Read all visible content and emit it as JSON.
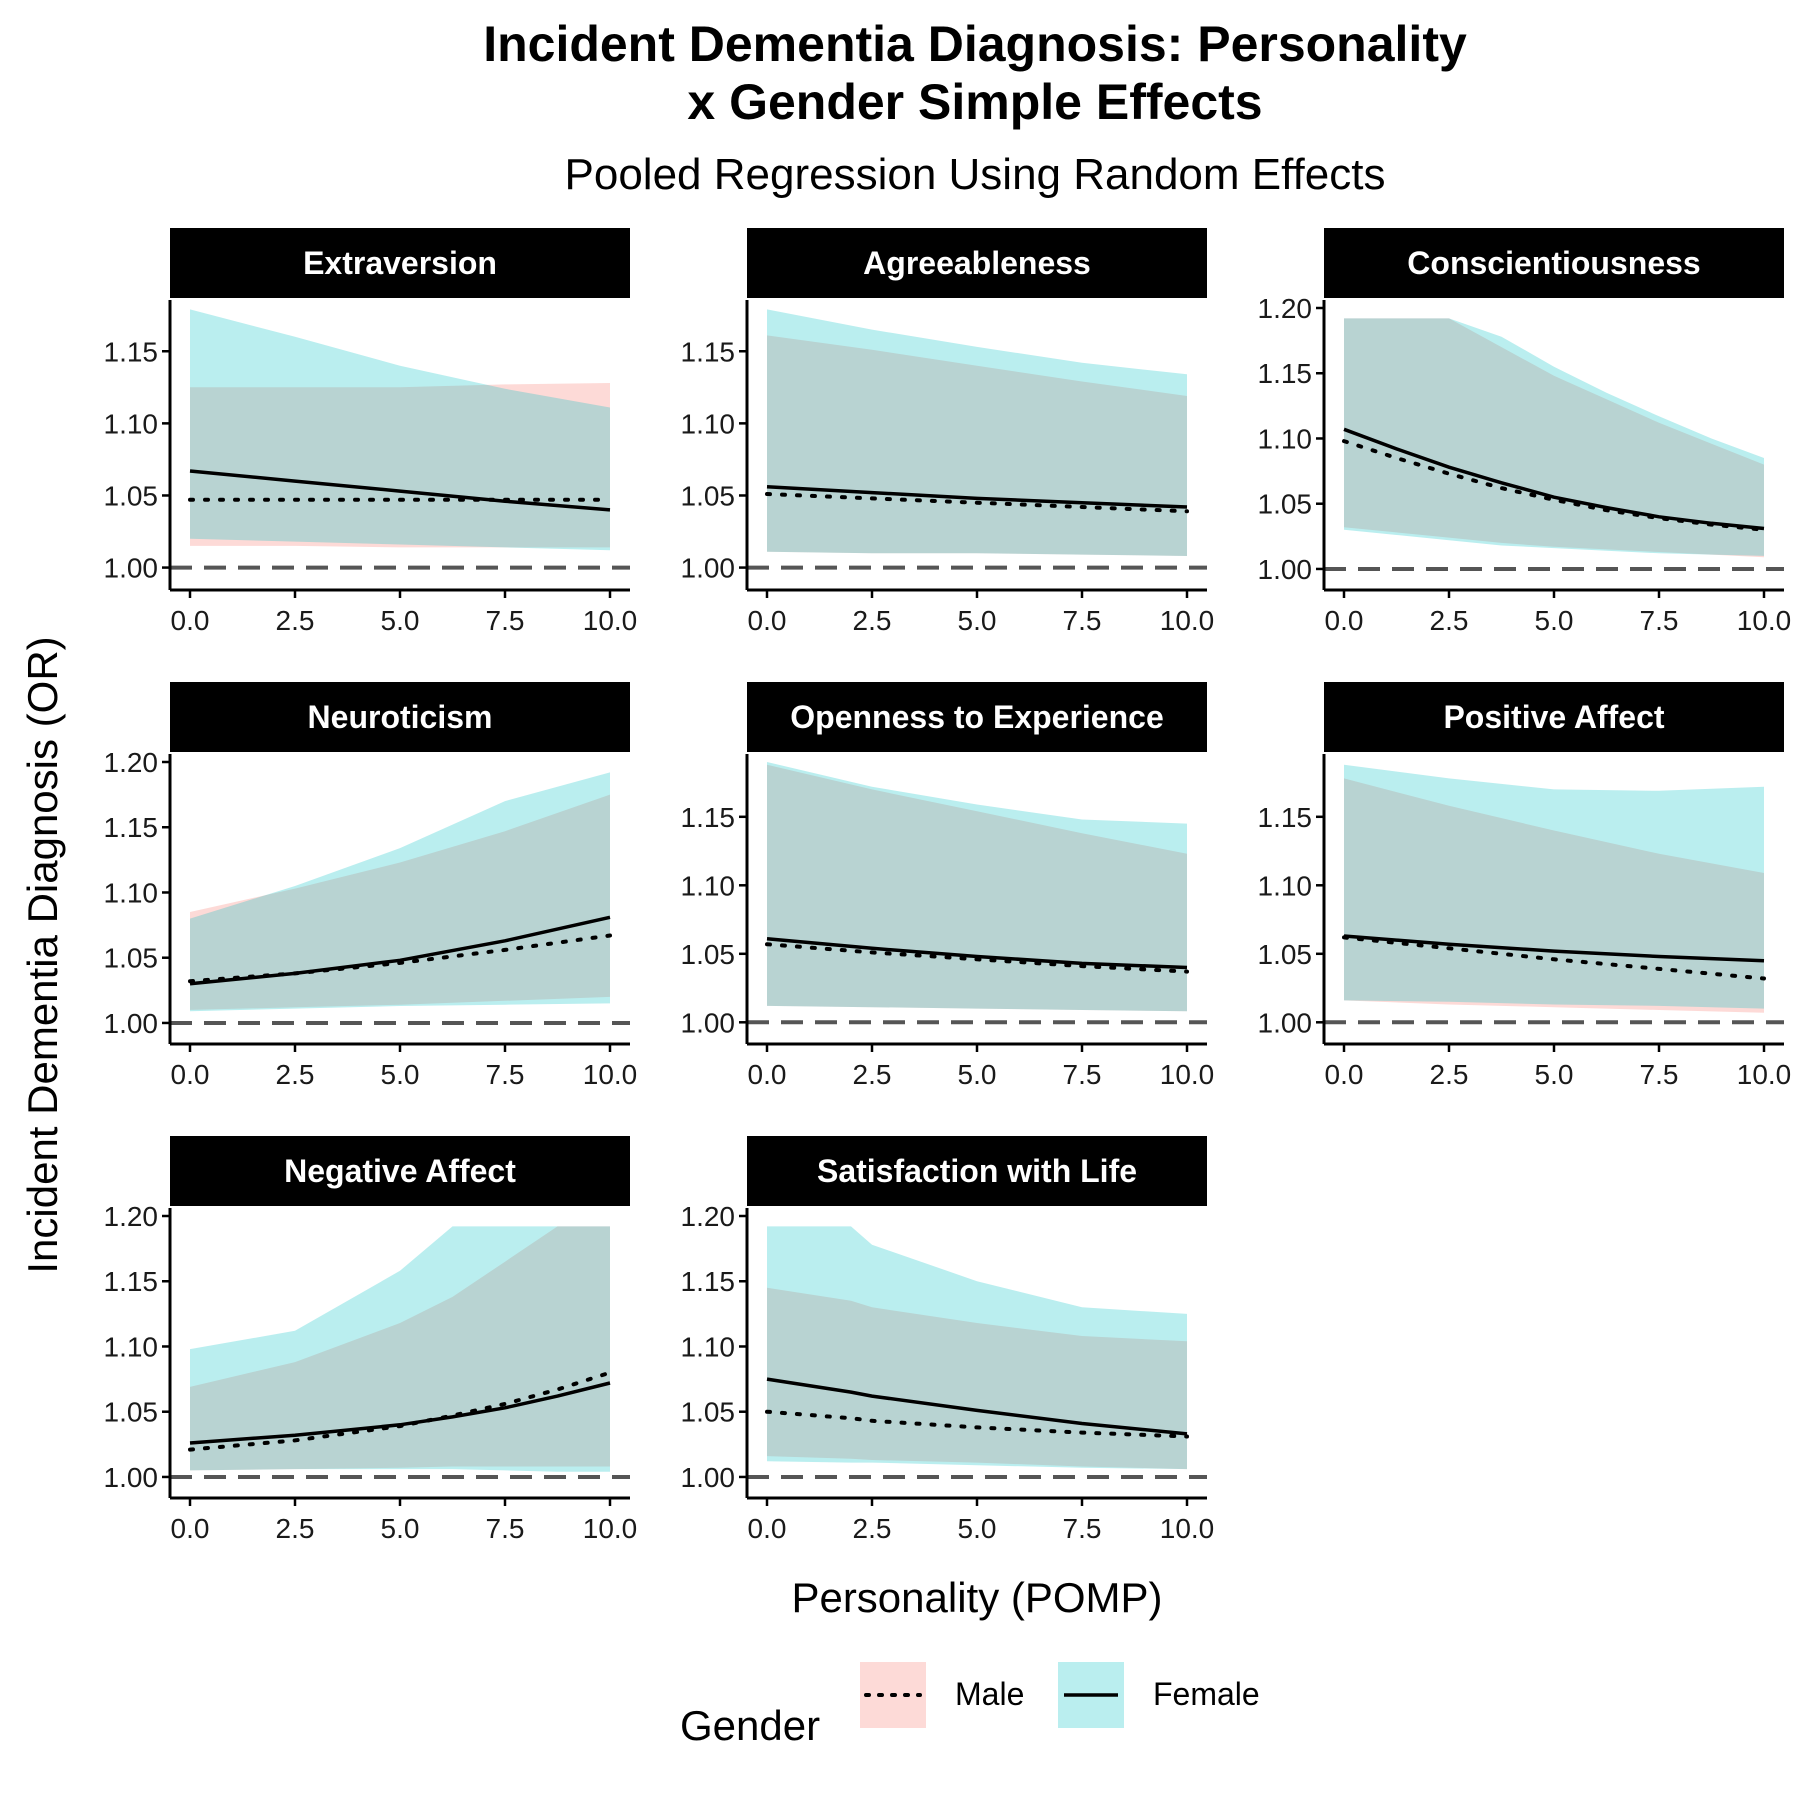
{
  "chart_data": {
    "type": "line",
    "title_line1": "Incident Dementia Diagnosis: Personality",
    "title_line2": "x Gender Simple Effects",
    "subtitle": "Pooled Regression Using Random Effects",
    "xlabel": "Personality (POMP)",
    "ylabel": "Incident Dementia Diagnosis (OR)",
    "xlim": [
      0,
      10
    ],
    "x_ticks": [
      "0.0",
      "2.5",
      "5.0",
      "7.5",
      "10.0"
    ],
    "legend": {
      "title": "Gender",
      "position": "bottom",
      "items": [
        {
          "label": "Male",
          "fill": "#F8766D",
          "line": "dotted"
        },
        {
          "label": "Female",
          "fill": "#00BFC4",
          "line": "solid"
        }
      ]
    },
    "reference_line": 1.0,
    "colors": {
      "male_ribbon": "#F8766D",
      "female_ribbon": "#00BFC4",
      "strip": "#000000"
    },
    "panels": [
      {
        "name": "Extraversion",
        "y_ticks": [
          "1.00",
          "1.05",
          "1.10",
          "1.15"
        ],
        "ylim": [
          0.99,
          1.18
        ],
        "x": [
          0,
          2.5,
          5,
          7.5,
          10
        ],
        "male": {
          "est": [
            1.047,
            1.047,
            1.047,
            1.047,
            1.047
          ],
          "lower": [
            1.015,
            1.015,
            1.014,
            1.014,
            1.014
          ],
          "upper": [
            1.125,
            1.125,
            1.125,
            1.127,
            1.128
          ]
        },
        "female": {
          "est": [
            1.067,
            1.06,
            1.053,
            1.046,
            1.04
          ],
          "lower": [
            1.02,
            1.018,
            1.016,
            1.014,
            1.012
          ],
          "upper": [
            1.179,
            1.16,
            1.14,
            1.124,
            1.111
          ]
        }
      },
      {
        "name": "Agreeableness",
        "y_ticks": [
          "1.00",
          "1.05",
          "1.10",
          "1.15"
        ],
        "ylim": [
          0.99,
          1.18
        ],
        "x": [
          0,
          2.5,
          5,
          7.5,
          10
        ],
        "male": {
          "est": [
            1.051,
            1.048,
            1.045,
            1.042,
            1.039
          ],
          "lower": [
            1.011,
            1.01,
            1.01,
            1.009,
            1.008
          ],
          "upper": [
            1.161,
            1.151,
            1.14,
            1.129,
            1.119
          ]
        },
        "female": {
          "est": [
            1.056,
            1.052,
            1.048,
            1.045,
            1.042
          ],
          "lower": [
            1.011,
            1.01,
            1.01,
            1.009,
            1.008
          ],
          "upper": [
            1.179,
            1.165,
            1.153,
            1.142,
            1.134
          ]
        }
      },
      {
        "name": "Conscientiousness",
        "y_ticks": [
          "1.00",
          "1.05",
          "1.10",
          "1.15",
          "1.20"
        ],
        "ylim": [
          0.99,
          1.2
        ],
        "x": [
          0,
          1.25,
          2.5,
          3.75,
          5,
          6.25,
          7.5,
          8.75,
          10
        ],
        "male": {
          "est": [
            1.098,
            1.085,
            1.073,
            1.062,
            1.053,
            1.045,
            1.039,
            1.034,
            1.03
          ],
          "lower": [
            1.032,
            1.028,
            1.024,
            1.02,
            1.017,
            1.015,
            1.013,
            1.011,
            1.009
          ],
          "upper": [
            1.192,
            1.192,
            1.192,
            1.17,
            1.148,
            1.13,
            1.112,
            1.096,
            1.08
          ]
        },
        "female": {
          "est": [
            1.107,
            1.092,
            1.078,
            1.066,
            1.055,
            1.047,
            1.04,
            1.035,
            1.031
          ],
          "lower": [
            1.03,
            1.026,
            1.022,
            1.018,
            1.016,
            1.014,
            1.012,
            1.011,
            1.01
          ],
          "upper": [
            1.192,
            1.192,
            1.192,
            1.178,
            1.155,
            1.135,
            1.117,
            1.1,
            1.085
          ]
        }
      },
      {
        "name": "Neuroticism",
        "y_ticks": [
          "1.00",
          "1.05",
          "1.10",
          "1.15",
          "1.20"
        ],
        "ylim": [
          0.99,
          1.2
        ],
        "x": [
          0,
          2.5,
          5,
          7.5,
          10
        ],
        "male": {
          "est": [
            1.032,
            1.038,
            1.046,
            1.056,
            1.067
          ],
          "lower": [
            1.01,
            1.012,
            1.014,
            1.017,
            1.02
          ],
          "upper": [
            1.085,
            1.103,
            1.123,
            1.147,
            1.175
          ]
        },
        "female": {
          "est": [
            1.03,
            1.038,
            1.048,
            1.063,
            1.081
          ],
          "lower": [
            1.009,
            1.011,
            1.013,
            1.014,
            1.015
          ],
          "upper": [
            1.08,
            1.105,
            1.134,
            1.17,
            1.192
          ]
        }
      },
      {
        "name": "Openness to Experience",
        "y_ticks": [
          "1.00",
          "1.05",
          "1.10",
          "1.15"
        ],
        "ylim": [
          0.99,
          1.19
        ],
        "x": [
          0,
          2.5,
          5,
          7.5,
          10
        ],
        "male": {
          "est": [
            1.057,
            1.051,
            1.046,
            1.041,
            1.037
          ],
          "lower": [
            1.012,
            1.011,
            1.01,
            1.009,
            1.008
          ],
          "upper": [
            1.188,
            1.17,
            1.154,
            1.138,
            1.123
          ]
        },
        "female": {
          "est": [
            1.061,
            1.054,
            1.048,
            1.043,
            1.04
          ],
          "lower": [
            1.012,
            1.011,
            1.01,
            1.009,
            1.008
          ],
          "upper": [
            1.19,
            1.172,
            1.159,
            1.148,
            1.145
          ]
        }
      },
      {
        "name": "Positive Affect",
        "y_ticks": [
          "1.00",
          "1.05",
          "1.10",
          "1.15"
        ],
        "ylim": [
          0.99,
          1.19
        ],
        "x": [
          0,
          2.5,
          5,
          7.5,
          10
        ],
        "male": {
          "est": [
            1.062,
            1.054,
            1.046,
            1.039,
            1.032
          ],
          "lower": [
            1.016,
            1.013,
            1.011,
            1.009,
            1.007
          ],
          "upper": [
            1.178,
            1.158,
            1.14,
            1.123,
            1.109
          ]
        },
        "female": {
          "est": [
            1.063,
            1.057,
            1.052,
            1.048,
            1.045
          ],
          "lower": [
            1.016,
            1.015,
            1.013,
            1.012,
            1.01
          ],
          "upper": [
            1.188,
            1.178,
            1.17,
            1.169,
            1.172
          ]
        }
      },
      {
        "name": "Negative Affect",
        "y_ticks": [
          "1.00",
          "1.05",
          "1.10",
          "1.15",
          "1.20"
        ],
        "ylim": [
          0.99,
          1.2
        ],
        "x": [
          0,
          2.5,
          5,
          6.25,
          7.5,
          8.75,
          10
        ],
        "male": {
          "est": [
            1.021,
            1.028,
            1.039,
            1.047,
            1.056,
            1.067,
            1.08
          ],
          "lower": [
            1.005,
            1.006,
            1.007,
            1.008,
            1.008,
            1.008,
            1.008
          ],
          "upper": [
            1.069,
            1.088,
            1.118,
            1.138,
            1.165,
            1.192,
            1.192
          ]
        },
        "female": {
          "est": [
            1.026,
            1.032,
            1.04,
            1.046,
            1.053,
            1.062,
            1.072
          ],
          "lower": [
            1.005,
            1.006,
            1.006,
            1.006,
            1.005,
            1.004,
            1.004
          ],
          "upper": [
            1.098,
            1.112,
            1.158,
            1.192,
            1.192,
            1.192,
            1.192
          ]
        }
      },
      {
        "name": "Satisfaction with Life",
        "y_ticks": [
          "1.00",
          "1.05",
          "1.10",
          "1.15",
          "1.20"
        ],
        "ylim": [
          0.99,
          1.2
        ],
        "x": [
          0,
          2,
          2.5,
          5,
          7.5,
          10
        ],
        "male": {
          "est": [
            1.05,
            1.045,
            1.043,
            1.038,
            1.034,
            1.031
          ],
          "lower": [
            1.016,
            1.014,
            1.013,
            1.011,
            1.008,
            1.006
          ],
          "upper": [
            1.145,
            1.135,
            1.13,
            1.118,
            1.108,
            1.104
          ]
        },
        "female": {
          "est": [
            1.075,
            1.065,
            1.062,
            1.051,
            1.041,
            1.033
          ],
          "lower": [
            1.012,
            1.011,
            1.011,
            1.009,
            1.007,
            1.006
          ],
          "upper": [
            1.192,
            1.192,
            1.178,
            1.15,
            1.13,
            1.125
          ]
        }
      }
    ]
  }
}
